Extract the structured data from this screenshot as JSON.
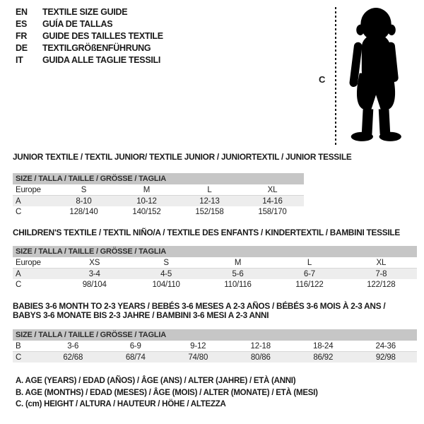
{
  "languages": [
    {
      "code": "EN",
      "title": "TEXTILE SIZE GUIDE"
    },
    {
      "code": "ES",
      "title": "GUÍA DE TALLAS"
    },
    {
      "code": "FR",
      "title": "GUIDE DES TAILLES TEXTILE"
    },
    {
      "code": "DE",
      "title": "TEXTILGRÖßENFÜHRUNG"
    },
    {
      "code": "IT",
      "title": "GUIDA ALLE TAGLIE TESSILI"
    }
  ],
  "figure": {
    "height_label": "C"
  },
  "sections": [
    {
      "title_lines": [
        "JUNIOR TEXTILE / TEXTIL JUNIOR/ TEXTILE JUNIOR / JUNIORTEXTIL / JUNIOR TESSILE"
      ],
      "size_header": "SIZE / TALLA / TAILLE / GRÖSSE / TAGLIA",
      "rows": [
        {
          "label": "Europe",
          "values": [
            "S",
            "M",
            "L",
            "XL"
          ]
        },
        {
          "label": "A",
          "values": [
            "8-10",
            "10-12",
            "12-13",
            "14-16"
          ]
        },
        {
          "label": "C",
          "values": [
            "128/140",
            "140/152",
            "152/158",
            "158/170"
          ]
        }
      ]
    },
    {
      "title_lines": [
        "CHILDREN'S TEXTILE / TEXTIL NIÑO/A / TEXTILE DES ENFANTS / KINDERTEXTIL / BAMBINI TESSILE"
      ],
      "size_header": "SIZE / TALLA / TAILLE / GRÖSSE / TAGLIA",
      "rows": [
        {
          "label": "Europe",
          "values": [
            "XS",
            "S",
            "M",
            "L",
            "XL"
          ]
        },
        {
          "label": "A",
          "values": [
            "3-4",
            "4-5",
            "5-6",
            "6-7",
            "7-8"
          ]
        },
        {
          "label": "C",
          "values": [
            "98/104",
            "104/110",
            "110/116",
            "116/122",
            "122/128"
          ]
        }
      ]
    },
    {
      "title_lines": [
        "BABIES 3-6 MONTH TO 2-3 YEARS / BEBÉS 3-6 MESES A 2-3 AÑOS / BÉBÉS 3-6 MOIS À 2-3 ANS /",
        "BABYS 3-6 MONATE BIS 2-3 JAHRE / BAMBINI 3-6 MESI A 2-3 ANNI"
      ],
      "size_header": "SIZE / TALLA / TAILLE / GRÖSSE / TAGLIA",
      "rows": [
        {
          "label": "B",
          "values": [
            "3-6",
            "6-9",
            "9-12",
            "12-18",
            "18-24",
            "24-36"
          ]
        },
        {
          "label": "C",
          "values": [
            "62/68",
            "68/74",
            "74/80",
            "80/86",
            "86/92",
            "92/98"
          ]
        }
      ]
    }
  ],
  "footnotes": [
    "A. AGE (YEARS) / EDAD (AÑOS) / ÂGE (ANS) / ALTER (JAHRE) / ETÀ (ANNI)",
    "B. AGE (MONTHS) / EDAD (MESES) / ÂGE (MOIS) / ALTER (MONATE) / ETÀ (MESI)",
    "C. (cm) HEIGHT / ALTURA / HAUTEUR / HÖHE / ALTEZZA"
  ],
  "colors": {
    "bar_gray": "#c6c6c6",
    "row_shade": "#ededed",
    "text": "#1a1a1a"
  }
}
